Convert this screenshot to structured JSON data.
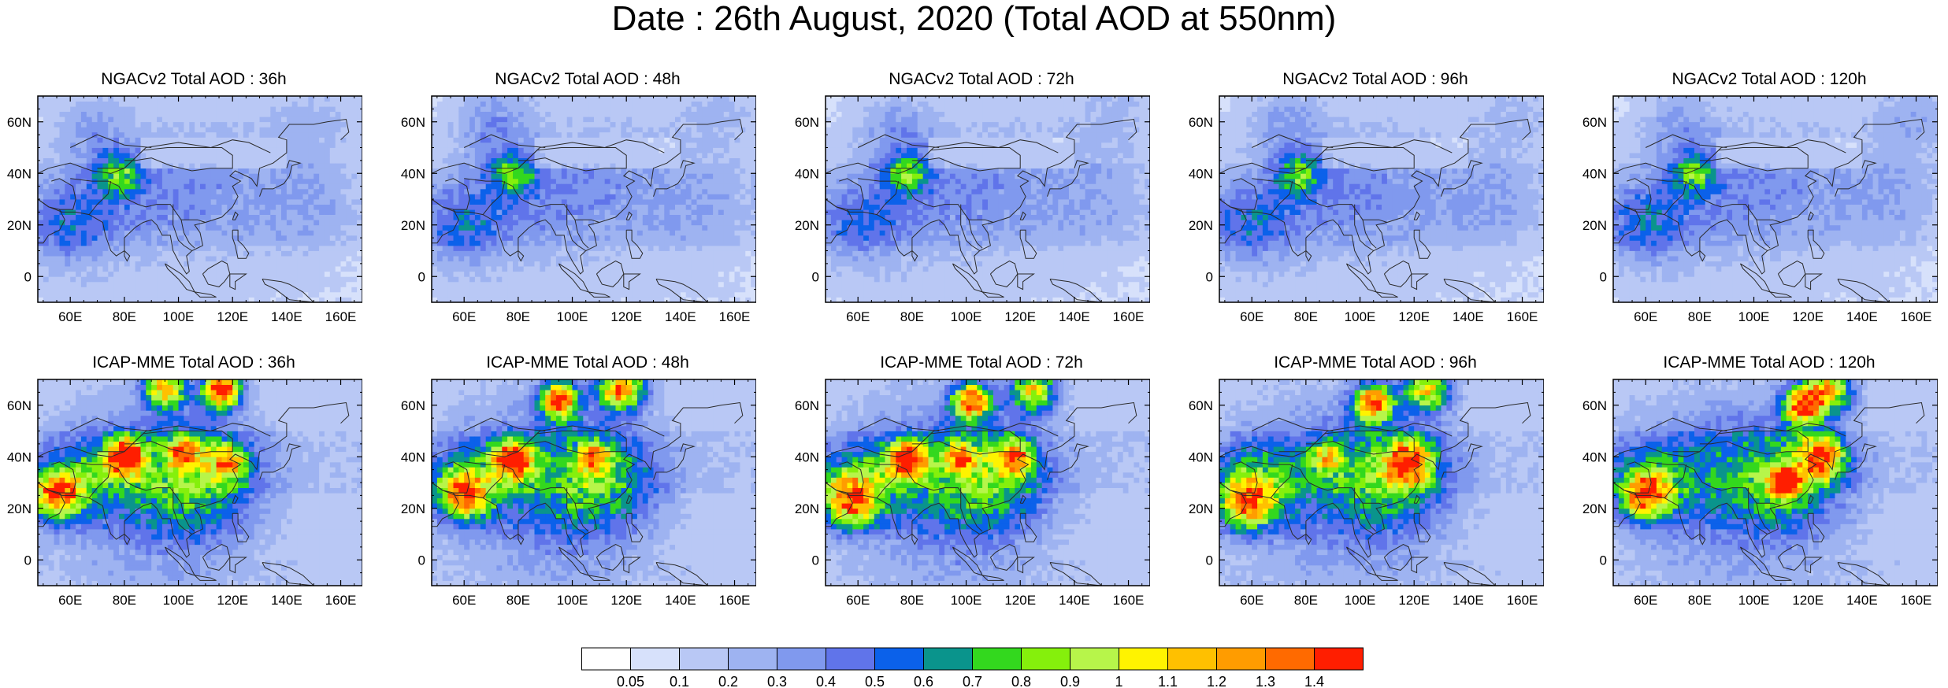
{
  "title": "Date : 26th August, 2020 (Total AOD at 550nm)",
  "lat_ticks": [
    "60N",
    "40N",
    "20N",
    "0"
  ],
  "lon_ticks": [
    "60E",
    "80E",
    "100E",
    "120E",
    "140E",
    "160E"
  ],
  "rows": [
    {
      "model": "NGACv2",
      "panels": [
        {
          "title": "NGACv2 Total AOD : 36h",
          "lead": "36h"
        },
        {
          "title": "NGACv2 Total AOD : 48h",
          "lead": "48h"
        },
        {
          "title": "NGACv2 Total AOD : 72h",
          "lead": "72h"
        },
        {
          "title": "NGACv2 Total AOD : 96h",
          "lead": "96h"
        },
        {
          "title": "NGACv2 Total AOD : 120h",
          "lead": "120h"
        }
      ]
    },
    {
      "model": "ICAP-MME",
      "panels": [
        {
          "title": "ICAP-MME Total AOD : 36h",
          "lead": "36h"
        },
        {
          "title": "ICAP-MME Total AOD : 48h",
          "lead": "48h"
        },
        {
          "title": "ICAP-MME Total AOD : 72h",
          "lead": "72h"
        },
        {
          "title": "ICAP-MME Total AOD : 96h",
          "lead": "96h"
        },
        {
          "title": "ICAP-MME Total AOD : 120h",
          "lead": "120h"
        }
      ]
    }
  ],
  "colorbar": {
    "labels": [
      "0.05",
      "0.1",
      "0.2",
      "0.3",
      "0.4",
      "0.5",
      "0.6",
      "0.7",
      "0.8",
      "0.9",
      "1",
      "1.1",
      "1.2",
      "1.3",
      "1.4"
    ],
    "colors": [
      "#ffffff",
      "#d7e1fb",
      "#b9c8f5",
      "#9eb3f1",
      "#8099ee",
      "#6074ea",
      "#0b61ea",
      "#0a948c",
      "#33d81e",
      "#85f00c",
      "#b7f54a",
      "#fff300",
      "#ffc000",
      "#ff9c00",
      "#ff6a00",
      "#ff1e00"
    ]
  },
  "chart_data": {
    "type": "heatmap",
    "title": "Date : 26th August, 2020 (Total AOD at 550nm)",
    "xlabel": "",
    "ylabel": "",
    "lon_range": [
      48,
      168
    ],
    "lat_range": [
      -10,
      70
    ],
    "lon_ticks": [
      60,
      80,
      100,
      120,
      140,
      160
    ],
    "lat_ticks": [
      0,
      20,
      40,
      60
    ],
    "color_levels": [
      0.05,
      0.1,
      0.2,
      0.3,
      0.4,
      0.5,
      0.6,
      0.7,
      0.8,
      0.9,
      1,
      1.1,
      1.2,
      1.3,
      1.4
    ],
    "panels": [
      {
        "model": "NGACv2",
        "lead": "36h",
        "features": [
          {
            "lon": 78,
            "lat": 40,
            "aod": 0.5,
            "r": 6
          },
          {
            "lon": 58,
            "lat": 20,
            "aod": 0.35,
            "r": 12
          },
          {
            "lon": 80,
            "lat": 30,
            "aod": 0.2,
            "r": 20
          },
          {
            "lon": 115,
            "lat": 35,
            "aod": 0.2,
            "r": 22
          },
          {
            "lon": 68,
            "lat": 58,
            "aod": 0.2,
            "r": 10
          },
          {
            "lon": 150,
            "lat": 25,
            "aod": 0.15,
            "r": 14
          },
          {
            "lon": 150,
            "lat": 60,
            "aod": 0.15,
            "r": 12
          }
        ]
      },
      {
        "model": "NGACv2",
        "lead": "48h",
        "features": [
          {
            "lon": 78,
            "lat": 40,
            "aod": 0.5,
            "r": 6
          },
          {
            "lon": 58,
            "lat": 20,
            "aod": 0.35,
            "r": 12
          },
          {
            "lon": 80,
            "lat": 30,
            "aod": 0.2,
            "r": 20
          },
          {
            "lon": 115,
            "lat": 35,
            "aod": 0.2,
            "r": 22
          },
          {
            "lon": 70,
            "lat": 60,
            "aod": 0.25,
            "r": 10
          },
          {
            "lon": 150,
            "lat": 25,
            "aod": 0.15,
            "r": 14
          },
          {
            "lon": 155,
            "lat": 62,
            "aod": 0.15,
            "r": 12
          }
        ]
      },
      {
        "model": "NGACv2",
        "lead": "72h",
        "features": [
          {
            "lon": 78,
            "lat": 40,
            "aod": 0.5,
            "r": 6
          },
          {
            "lon": 58,
            "lat": 20,
            "aod": 0.3,
            "r": 12
          },
          {
            "lon": 80,
            "lat": 30,
            "aod": 0.2,
            "r": 20
          },
          {
            "lon": 115,
            "lat": 35,
            "aod": 0.2,
            "r": 22
          },
          {
            "lon": 74,
            "lat": 58,
            "aod": 0.2,
            "r": 10
          },
          {
            "lon": 150,
            "lat": 28,
            "aod": 0.15,
            "r": 14
          },
          {
            "lon": 155,
            "lat": 62,
            "aod": 0.15,
            "r": 12
          }
        ]
      },
      {
        "model": "NGACv2",
        "lead": "96h",
        "features": [
          {
            "lon": 78,
            "lat": 40,
            "aod": 0.5,
            "r": 6
          },
          {
            "lon": 58,
            "lat": 20,
            "aod": 0.35,
            "r": 12
          },
          {
            "lon": 80,
            "lat": 30,
            "aod": 0.2,
            "r": 20
          },
          {
            "lon": 115,
            "lat": 35,
            "aod": 0.2,
            "r": 22
          },
          {
            "lon": 72,
            "lat": 60,
            "aod": 0.2,
            "r": 10
          },
          {
            "lon": 150,
            "lat": 28,
            "aod": 0.15,
            "r": 14
          },
          {
            "lon": 158,
            "lat": 62,
            "aod": 0.15,
            "r": 12
          }
        ]
      },
      {
        "model": "NGACv2",
        "lead": "120h",
        "features": [
          {
            "lon": 78,
            "lat": 40,
            "aod": 0.5,
            "r": 6
          },
          {
            "lon": 58,
            "lat": 20,
            "aod": 0.35,
            "r": 12
          },
          {
            "lon": 80,
            "lat": 30,
            "aod": 0.2,
            "r": 20
          },
          {
            "lon": 115,
            "lat": 35,
            "aod": 0.2,
            "r": 22
          },
          {
            "lon": 72,
            "lat": 60,
            "aod": 0.2,
            "r": 10
          },
          {
            "lon": 150,
            "lat": 28,
            "aod": 0.15,
            "r": 14
          },
          {
            "lon": 160,
            "lat": 62,
            "aod": 0.2,
            "r": 12
          }
        ]
      },
      {
        "model": "ICAP-MME",
        "lead": "36h",
        "features": [
          {
            "lon": 55,
            "lat": 25,
            "aod": 1.0,
            "r": 6
          },
          {
            "lon": 80,
            "lat": 40,
            "aod": 1.2,
            "r": 5
          },
          {
            "lon": 102,
            "lat": 42,
            "aod": 0.8,
            "r": 4
          },
          {
            "lon": 118,
            "lat": 38,
            "aod": 0.7,
            "r": 5
          },
          {
            "lon": 95,
            "lat": 66,
            "aod": 1.0,
            "r": 5
          },
          {
            "lon": 116,
            "lat": 66,
            "aod": 1.4,
            "r": 5
          },
          {
            "lon": 90,
            "lat": 30,
            "aod": 0.4,
            "r": 22
          },
          {
            "lon": 110,
            "lat": 30,
            "aod": 0.4,
            "r": 16
          },
          {
            "lon": 60,
            "lat": 30,
            "aod": 0.4,
            "r": 12
          }
        ]
      },
      {
        "model": "ICAP-MME",
        "lead": "48h",
        "features": [
          {
            "lon": 60,
            "lat": 25,
            "aod": 0.9,
            "r": 6
          },
          {
            "lon": 78,
            "lat": 39,
            "aod": 1.2,
            "r": 5
          },
          {
            "lon": 108,
            "lat": 40,
            "aod": 0.7,
            "r": 4
          },
          {
            "lon": 95,
            "lat": 62,
            "aod": 1.2,
            "r": 5
          },
          {
            "lon": 118,
            "lat": 67,
            "aod": 1.2,
            "r": 6
          },
          {
            "lon": 90,
            "lat": 30,
            "aod": 0.4,
            "r": 22
          },
          {
            "lon": 112,
            "lat": 30,
            "aod": 0.4,
            "r": 16
          },
          {
            "lon": 60,
            "lat": 30,
            "aod": 0.4,
            "r": 12
          }
        ]
      },
      {
        "model": "ICAP-MME",
        "lead": "72h",
        "features": [
          {
            "lon": 57,
            "lat": 23,
            "aod": 0.9,
            "r": 7
          },
          {
            "lon": 78,
            "lat": 39,
            "aod": 1.2,
            "r": 5
          },
          {
            "lon": 98,
            "lat": 40,
            "aod": 0.8,
            "r": 4
          },
          {
            "lon": 118,
            "lat": 40,
            "aod": 0.8,
            "r": 5
          },
          {
            "lon": 102,
            "lat": 62,
            "aod": 1.2,
            "r": 5
          },
          {
            "lon": 125,
            "lat": 66,
            "aod": 0.9,
            "r": 6
          },
          {
            "lon": 90,
            "lat": 30,
            "aod": 0.4,
            "r": 22
          },
          {
            "lon": 112,
            "lat": 30,
            "aod": 0.4,
            "r": 16
          },
          {
            "lon": 60,
            "lat": 30,
            "aod": 0.4,
            "r": 12
          }
        ]
      },
      {
        "model": "ICAP-MME",
        "lead": "96h",
        "features": [
          {
            "lon": 58,
            "lat": 22,
            "aod": 0.9,
            "r": 7
          },
          {
            "lon": 88,
            "lat": 40,
            "aod": 0.6,
            "r": 4
          },
          {
            "lon": 118,
            "lat": 38,
            "aod": 1.0,
            "r": 6
          },
          {
            "lon": 105,
            "lat": 61,
            "aod": 1.3,
            "r": 5
          },
          {
            "lon": 125,
            "lat": 66,
            "aod": 0.9,
            "r": 6
          },
          {
            "lon": 90,
            "lat": 30,
            "aod": 0.4,
            "r": 22
          },
          {
            "lon": 115,
            "lat": 30,
            "aod": 0.4,
            "r": 16
          },
          {
            "lon": 60,
            "lat": 30,
            "aod": 0.4,
            "r": 12
          }
        ]
      },
      {
        "model": "ICAP-MME",
        "lead": "120h",
        "features": [
          {
            "lon": 60,
            "lat": 25,
            "aod": 0.9,
            "r": 6
          },
          {
            "lon": 125,
            "lat": 40,
            "aod": 1.0,
            "r": 6
          },
          {
            "lon": 112,
            "lat": 30,
            "aod": 1.1,
            "r": 4
          },
          {
            "lon": 118,
            "lat": 60,
            "aod": 1.2,
            "r": 5
          },
          {
            "lon": 128,
            "lat": 66,
            "aod": 1.0,
            "r": 6
          },
          {
            "lon": 90,
            "lat": 30,
            "aod": 0.4,
            "r": 22
          },
          {
            "lon": 115,
            "lat": 30,
            "aod": 0.4,
            "r": 16
          },
          {
            "lon": 60,
            "lat": 30,
            "aod": 0.4,
            "r": 12
          }
        ]
      }
    ]
  }
}
